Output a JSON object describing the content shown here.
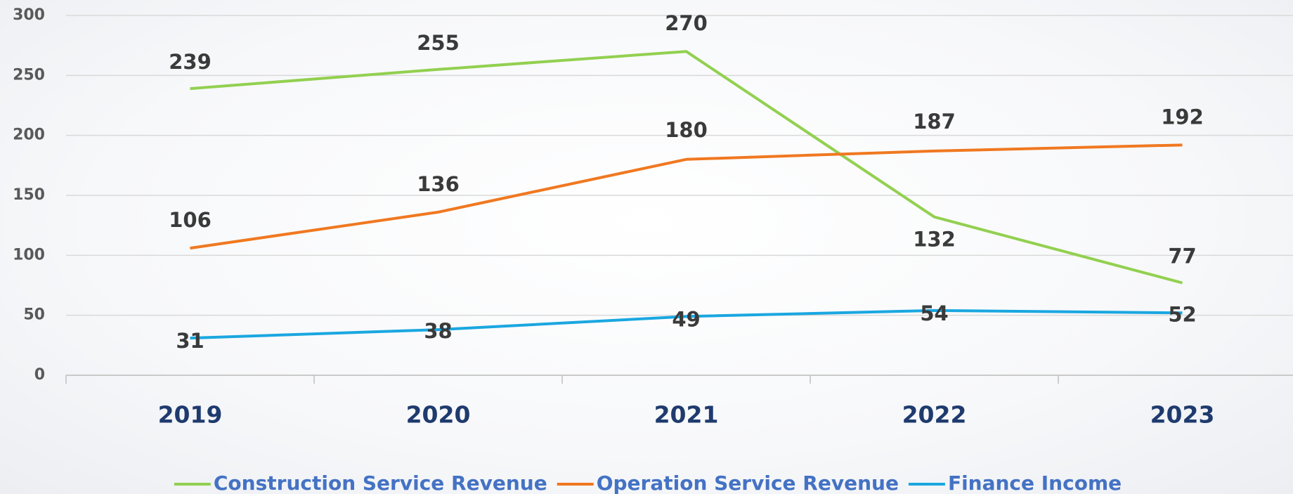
{
  "chart_data": {
    "type": "line",
    "categories": [
      "2019",
      "2020",
      "2021",
      "2022",
      "2023"
    ],
    "series": [
      {
        "name": "Construction Service Revenue",
        "color": "#92d050",
        "values": [
          239,
          255,
          270,
          132,
          77
        ]
      },
      {
        "name": "Operation Service Revenue",
        "color": "#f07820",
        "values": [
          106,
          136,
          180,
          187,
          192
        ]
      },
      {
        "name": "Finance Income",
        "color": "#1aa7e0",
        "values": [
          31,
          38,
          49,
          54,
          52
        ]
      }
    ],
    "ylim": [
      0,
      300
    ],
    "yticks": [
      0,
      50,
      100,
      150,
      200,
      250,
      300
    ],
    "grid": true,
    "legend": "bottom"
  }
}
